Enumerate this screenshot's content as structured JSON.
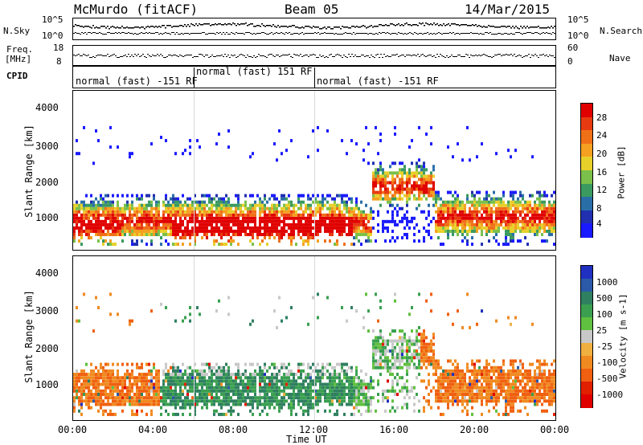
{
  "header": {
    "station": "McMurdo (fitACF)",
    "beam": "Beam 05",
    "date": "14/Mar/2015"
  },
  "status_panel": {
    "nsky_label": "N.Sky",
    "nsearch_label": "N.Search",
    "freq_label_1": "Freq.",
    "freq_label_2": "[MHz]",
    "nave_label": "Nave",
    "cpid_label": "CPID",
    "left_ticks_top": [
      "10^5",
      "10^0"
    ],
    "right_ticks_top": [
      "10^5",
      "10^0"
    ],
    "left_ticks_freq": [
      "18",
      "8"
    ],
    "right_ticks_nave": [
      "60",
      "0"
    ],
    "cpid_segments": [
      {
        "label": "normal (fast) -151 RF",
        "start_hour": 0,
        "end_hour": 6
      },
      {
        "label": "normal (fast) 151 RF",
        "start_hour": 6,
        "end_hour": 12
      },
      {
        "label": "normal (fast) -151 RF",
        "start_hour": 12,
        "end_hour": 24
      }
    ]
  },
  "chart_data": [
    {
      "type": "heatmap",
      "name": "power-panel",
      "ylabel": "Slant Range [km]",
      "ylim": [
        180,
        4600
      ],
      "yticks": [
        1000,
        2000,
        3000,
        4000
      ],
      "xlim": [
        0,
        24
      ],
      "colorbar": {
        "label": "Power [dB]",
        "ticks": [
          "4",
          "8",
          "12",
          "16",
          "20",
          "24",
          "28"
        ],
        "colors": [
          "#1a1aff",
          "#2030b0",
          "#2a6ea8",
          "#3a9a60",
          "#7ac04a",
          "#e8d02a",
          "#f5a020",
          "#f07018",
          "#e83a10",
          "#e00000"
        ]
      }
    },
    {
      "type": "heatmap",
      "name": "velocity-panel",
      "ylabel": "Slant Range [km]",
      "ylim": [
        180,
        4600
      ],
      "yticks": [
        1000,
        2000,
        3000,
        4000
      ],
      "xlim": [
        0,
        24
      ],
      "xticks": [
        "00:00",
        "04:00",
        "08:00",
        "12:00",
        "16:00",
        "20:00",
        "00:00"
      ],
      "xlabel": "Time UT",
      "colorbar": {
        "label": "Velocity [m s-1]",
        "ticks": [
          "1000",
          "500",
          "100",
          "25",
          "-25",
          "-100",
          "-500",
          "-1000"
        ],
        "colors": [
          "#2030c0",
          "#2a5aa8",
          "#2f8060",
          "#3aa050",
          "#60c040",
          "#c8c8c8",
          "#f0b040",
          "#f08a20",
          "#f06010",
          "#e02000",
          "#e00000"
        ]
      }
    }
  ]
}
